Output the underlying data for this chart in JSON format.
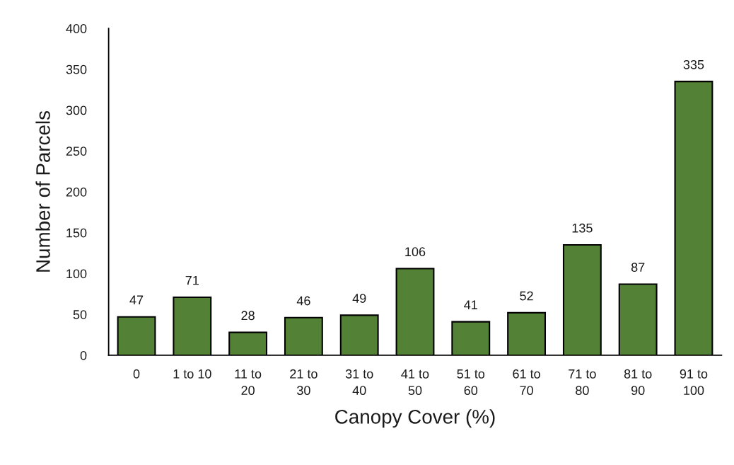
{
  "chart_data": {
    "type": "bar",
    "categories": [
      "0",
      "1 to 10",
      "11 to 20",
      "21 to 30",
      "31 to 40",
      "41 to 50",
      "51 to 60",
      "61 to 70",
      "71 to 80",
      "81 to 90",
      "91 to 100"
    ],
    "values": [
      47,
      71,
      28,
      46,
      49,
      106,
      41,
      52,
      135,
      87,
      335
    ],
    "color": "#538135",
    "xlabel": "Canopy Cover (%)",
    "ylabel": "Number of Parcels",
    "ylim": [
      0,
      400
    ],
    "yticks": [
      0,
      50,
      100,
      150,
      200,
      250,
      300,
      350,
      400
    ],
    "data_labels": true
  }
}
